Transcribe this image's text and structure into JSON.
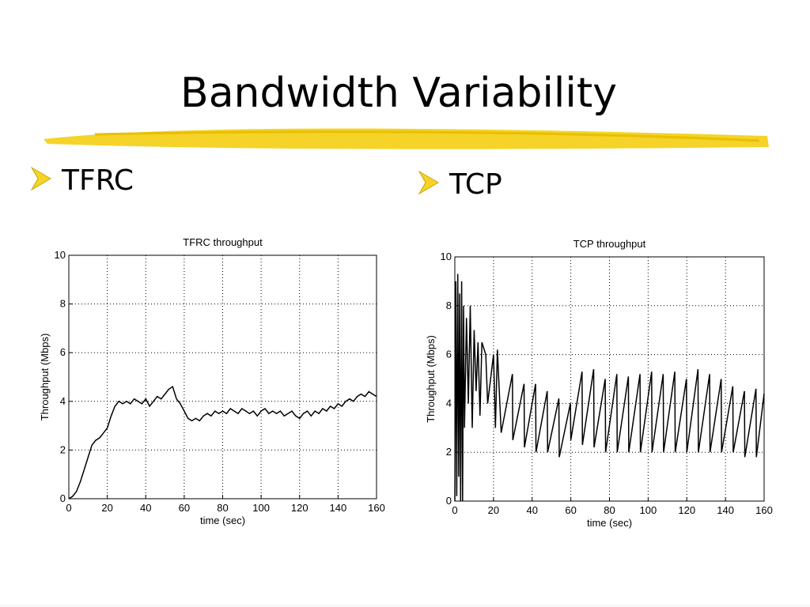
{
  "slide": {
    "title": "Bandwidth Variability",
    "bullets": [
      "TFRC",
      "TCP"
    ]
  },
  "chart_data": [
    {
      "type": "line",
      "title": "TFRC throughput",
      "xlabel": "time (sec)",
      "ylabel": "Throughput (Mbps)",
      "color": "#000000",
      "grid": true,
      "xlim": [
        0,
        160
      ],
      "ylim": [
        0,
        10
      ],
      "xticks": [
        0,
        20,
        40,
        60,
        80,
        100,
        120,
        140,
        160
      ],
      "yticks": [
        0,
        2,
        4,
        6,
        8,
        10
      ],
      "x": [
        0,
        2,
        4,
        6,
        8,
        10,
        12,
        14,
        16,
        18,
        20,
        22,
        24,
        26,
        28,
        30,
        32,
        34,
        36,
        38,
        40,
        42,
        44,
        46,
        48,
        50,
        52,
        54,
        56,
        58,
        60,
        62,
        64,
        66,
        68,
        70,
        72,
        74,
        76,
        78,
        80,
        82,
        84,
        86,
        88,
        90,
        92,
        94,
        96,
        98,
        100,
        102,
        104,
        106,
        108,
        110,
        112,
        114,
        116,
        118,
        120,
        122,
        124,
        126,
        128,
        130,
        132,
        134,
        136,
        138,
        140,
        142,
        144,
        146,
        148,
        150,
        152,
        154,
        156,
        158,
        160
      ],
      "values": [
        0,
        0.1,
        0.3,
        0.7,
        1.2,
        1.7,
        2.2,
        2.4,
        2.5,
        2.7,
        2.9,
        3.4,
        3.8,
        4.0,
        3.9,
        4.0,
        3.9,
        4.1,
        4.0,
        3.9,
        4.1,
        3.8,
        4.0,
        4.2,
        4.1,
        4.3,
        4.5,
        4.6,
        4.1,
        3.9,
        3.6,
        3.3,
        3.2,
        3.3,
        3.2,
        3.4,
        3.5,
        3.4,
        3.6,
        3.5,
        3.6,
        3.5,
        3.7,
        3.6,
        3.5,
        3.7,
        3.6,
        3.5,
        3.6,
        3.4,
        3.6,
        3.7,
        3.5,
        3.6,
        3.5,
        3.6,
        3.4,
        3.5,
        3.6,
        3.4,
        3.3,
        3.5,
        3.6,
        3.4,
        3.6,
        3.5,
        3.7,
        3.6,
        3.8,
        3.7,
        3.9,
        3.8,
        4.0,
        4.1,
        4.0,
        4.2,
        4.3,
        4.2,
        4.4,
        4.3,
        4.2
      ]
    },
    {
      "type": "line",
      "title": "TCP throughput",
      "xlabel": "time (sec)",
      "ylabel": "Throughput (Mbps)",
      "color": "#000000",
      "grid": true,
      "xlim": [
        0,
        160
      ],
      "ylim": [
        0,
        10
      ],
      "xticks": [
        0,
        20,
        40,
        60,
        80,
        100,
        120,
        140,
        160
      ],
      "yticks": [
        0,
        2,
        4,
        6,
        8,
        10
      ],
      "x": [
        0,
        0.5,
        1,
        1.5,
        2,
        2.5,
        3,
        3.5,
        4,
        4.5,
        5,
        6,
        7,
        8,
        9,
        10,
        11,
        12,
        13,
        14,
        16,
        17,
        20,
        21,
        22,
        24,
        29.8,
        30,
        35.8,
        36,
        41.8,
        42,
        47.8,
        48,
        53.8,
        54,
        59.8,
        60,
        65.8,
        66,
        71.8,
        72,
        77.8,
        78,
        83.8,
        84,
        89.8,
        90,
        95.8,
        96,
        101.8,
        102,
        107.8,
        108,
        113.8,
        114,
        119.8,
        120,
        125.8,
        126,
        131.8,
        132,
        137.8,
        138,
        143.8,
        144,
        149.8,
        150,
        155.8,
        156,
        160
      ],
      "values": [
        0,
        9,
        0.2,
        9.3,
        1,
        8.5,
        0,
        9,
        0,
        8,
        3,
        7.5,
        4,
        8,
        3,
        7,
        4.5,
        6.5,
        3.5,
        6.5,
        6,
        4,
        6,
        3,
        6.2,
        2.8,
        5.2,
        2.5,
        4.8,
        2.2,
        4.8,
        2.0,
        4.5,
        2.0,
        4.2,
        1.8,
        4.0,
        2.5,
        5.3,
        2.3,
        5.4,
        2.2,
        5.0,
        2.0,
        5.2,
        2.0,
        5.1,
        2.0,
        5.2,
        2.0,
        5.3,
        2.0,
        5.2,
        2.0,
        5.3,
        2.0,
        5.0,
        2.0,
        5.4,
        2.0,
        5.2,
        2.0,
        5.0,
        2.0,
        4.7,
        2.0,
        4.5,
        1.8,
        4.6,
        1.8,
        4.4
      ]
    }
  ]
}
